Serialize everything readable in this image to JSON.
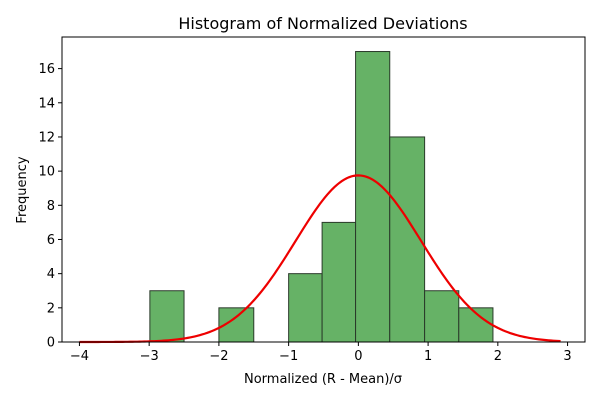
{
  "chart_data": {
    "type": "bar",
    "title": "Histogram of Normalized Deviations",
    "xlabel": "Normalized (R - Mean)/σ",
    "ylabel": "Frequency",
    "xlim": [
      -4.25,
      3.25
    ],
    "ylim": [
      0,
      17.85
    ],
    "xticks": [
      -4,
      -3,
      -2,
      -1,
      0,
      1,
      2,
      3
    ],
    "xtick_labels": [
      "−4",
      "−3",
      "−2",
      "−1",
      "0",
      "1",
      "2",
      "3"
    ],
    "yticks": [
      0,
      2,
      4,
      6,
      8,
      10,
      12,
      14,
      16
    ],
    "yticks_labels": [
      "0",
      "2",
      "4",
      "6",
      "8",
      "10",
      "12",
      "14",
      "16"
    ],
    "bins": [
      {
        "x0": -2.99,
        "x1": -2.5,
        "count": 3
      },
      {
        "x0": -2.5,
        "x1": -2.0,
        "count": 0
      },
      {
        "x0": -2.0,
        "x1": -1.5,
        "count": 2
      },
      {
        "x0": -1.5,
        "x1": -1.0,
        "count": 0
      },
      {
        "x0": -1.0,
        "x1": -0.52,
        "count": 4
      },
      {
        "x0": -0.52,
        "x1": -0.04,
        "count": 7
      },
      {
        "x0": -0.04,
        "x1": 0.45,
        "count": 17
      },
      {
        "x0": 0.45,
        "x1": 0.95,
        "count": 12
      },
      {
        "x0": 0.95,
        "x1": 1.44,
        "count": 3
      },
      {
        "x0": 1.44,
        "x1": 1.93,
        "count": 2
      }
    ],
    "curve": {
      "mean": 0,
      "peak": 9.75,
      "sigma": 0.9,
      "x_start": -4,
      "x_end": 2.9
    },
    "colors": {
      "bar_fill": "#66b266",
      "bar_edge": "#2a3a2a",
      "curve": "#ee0000"
    },
    "grid": false
  }
}
